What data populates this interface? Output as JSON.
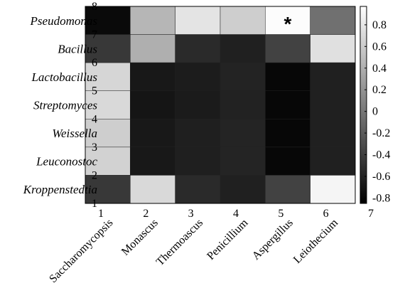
{
  "chart_data": {
    "type": "heatmap",
    "rows": [
      "Pseudomonas",
      "Bacillus",
      "Lactobacillus",
      "Streptomyces",
      "Weissella",
      "Leuconostoc",
      "Kroppenstedtia"
    ],
    "columns": [
      "Saccharomycopsis",
      "Monascus",
      "Thermoascus",
      "Penicillium",
      "Aspergillus",
      "Leiothecium"
    ],
    "values": [
      [
        -0.78,
        0.45,
        0.78,
        0.62,
        0.95,
        -0.05
      ],
      [
        -0.45,
        0.4,
        -0.55,
        -0.62,
        -0.38,
        0.75
      ],
      [
        0.68,
        -0.68,
        -0.65,
        -0.6,
        -0.8,
        -0.62
      ],
      [
        0.7,
        -0.7,
        -0.66,
        -0.61,
        -0.8,
        -0.62
      ],
      [
        0.62,
        -0.68,
        -0.63,
        -0.59,
        -0.8,
        -0.62
      ],
      [
        0.65,
        -0.68,
        -0.63,
        -0.59,
        -0.8,
        -0.62
      ],
      [
        -0.45,
        0.7,
        -0.55,
        -0.62,
        -0.38,
        0.9
      ]
    ],
    "annotations": [
      {
        "row": 0,
        "col": 4,
        "text": "*"
      }
    ],
    "x_ticks": [
      "1",
      "2",
      "3",
      "4",
      "5",
      "6",
      "7"
    ],
    "y_ticks": [
      "1",
      "2",
      "3",
      "4",
      "5",
      "6",
      "7",
      "8"
    ],
    "xlim": [
      1,
      7
    ],
    "ylim": [
      1,
      8
    ],
    "colorbar": {
      "range": [
        -0.85,
        0.97
      ],
      "ticks": [
        "-0.8",
        "-0.6",
        "-0.4",
        "-0.2",
        "0",
        "0.2",
        "0.4",
        "0.6",
        "0.8"
      ],
      "tick_values": [
        -0.8,
        -0.6,
        -0.4,
        -0.2,
        0,
        0.2,
        0.4,
        0.6,
        0.8
      ],
      "colormap": "gray"
    },
    "grid": false,
    "title": "",
    "xlabel": "",
    "ylabel": ""
  }
}
